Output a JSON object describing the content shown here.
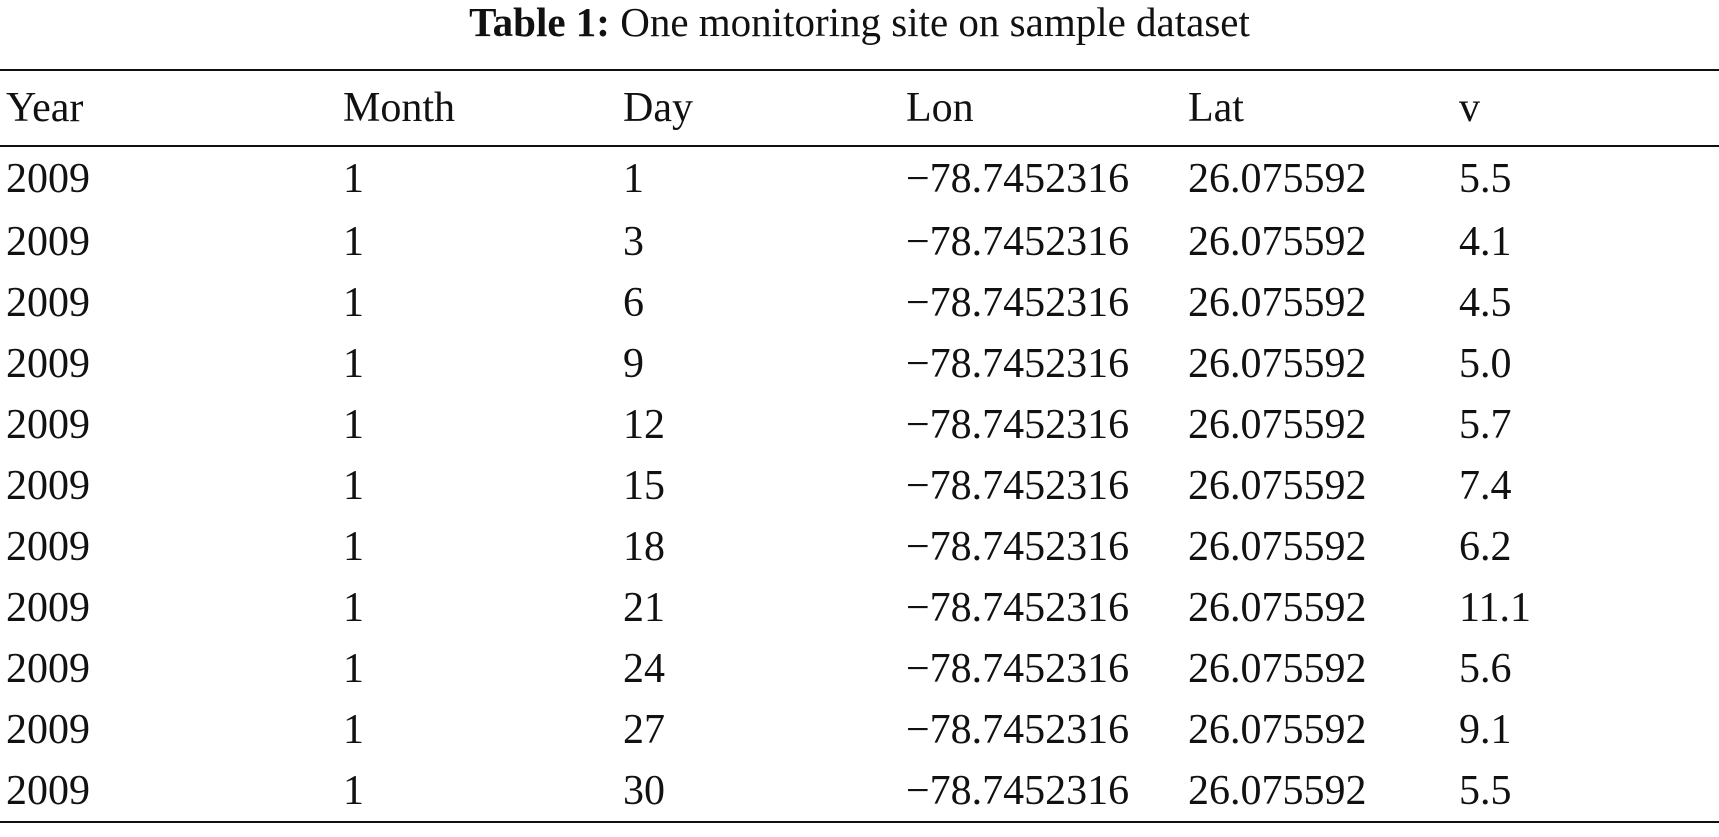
{
  "caption": {
    "label": "Table 1:",
    "text": "One monitoring site on sample dataset"
  },
  "table": {
    "headers": [
      "Year",
      "Month",
      "Day",
      "Lon",
      "Lat",
      "v"
    ],
    "rows": [
      [
        "2009",
        "1",
        "1",
        "−78.7452316",
        "26.075592",
        "5.5"
      ],
      [
        "2009",
        "1",
        "3",
        "−78.7452316",
        "26.075592",
        "4.1"
      ],
      [
        "2009",
        "1",
        "6",
        "−78.7452316",
        "26.075592",
        "4.5"
      ],
      [
        "2009",
        "1",
        "9",
        "−78.7452316",
        "26.075592",
        "5.0"
      ],
      [
        "2009",
        "1",
        "12",
        "−78.7452316",
        "26.075592",
        "5.7"
      ],
      [
        "2009",
        "1",
        "15",
        "−78.7452316",
        "26.075592",
        "7.4"
      ],
      [
        "2009",
        "1",
        "18",
        "−78.7452316",
        "26.075592",
        "6.2"
      ],
      [
        "2009",
        "1",
        "21",
        "−78.7452316",
        "26.075592",
        "11.1"
      ],
      [
        "2009",
        "1",
        "24",
        "−78.7452316",
        "26.075592",
        "5.6"
      ],
      [
        "2009",
        "1",
        "27",
        "−78.7452316",
        "26.075592",
        "9.1"
      ],
      [
        "2009",
        "1",
        "30",
        "−78.7452316",
        "26.075592",
        "5.5"
      ]
    ]
  }
}
